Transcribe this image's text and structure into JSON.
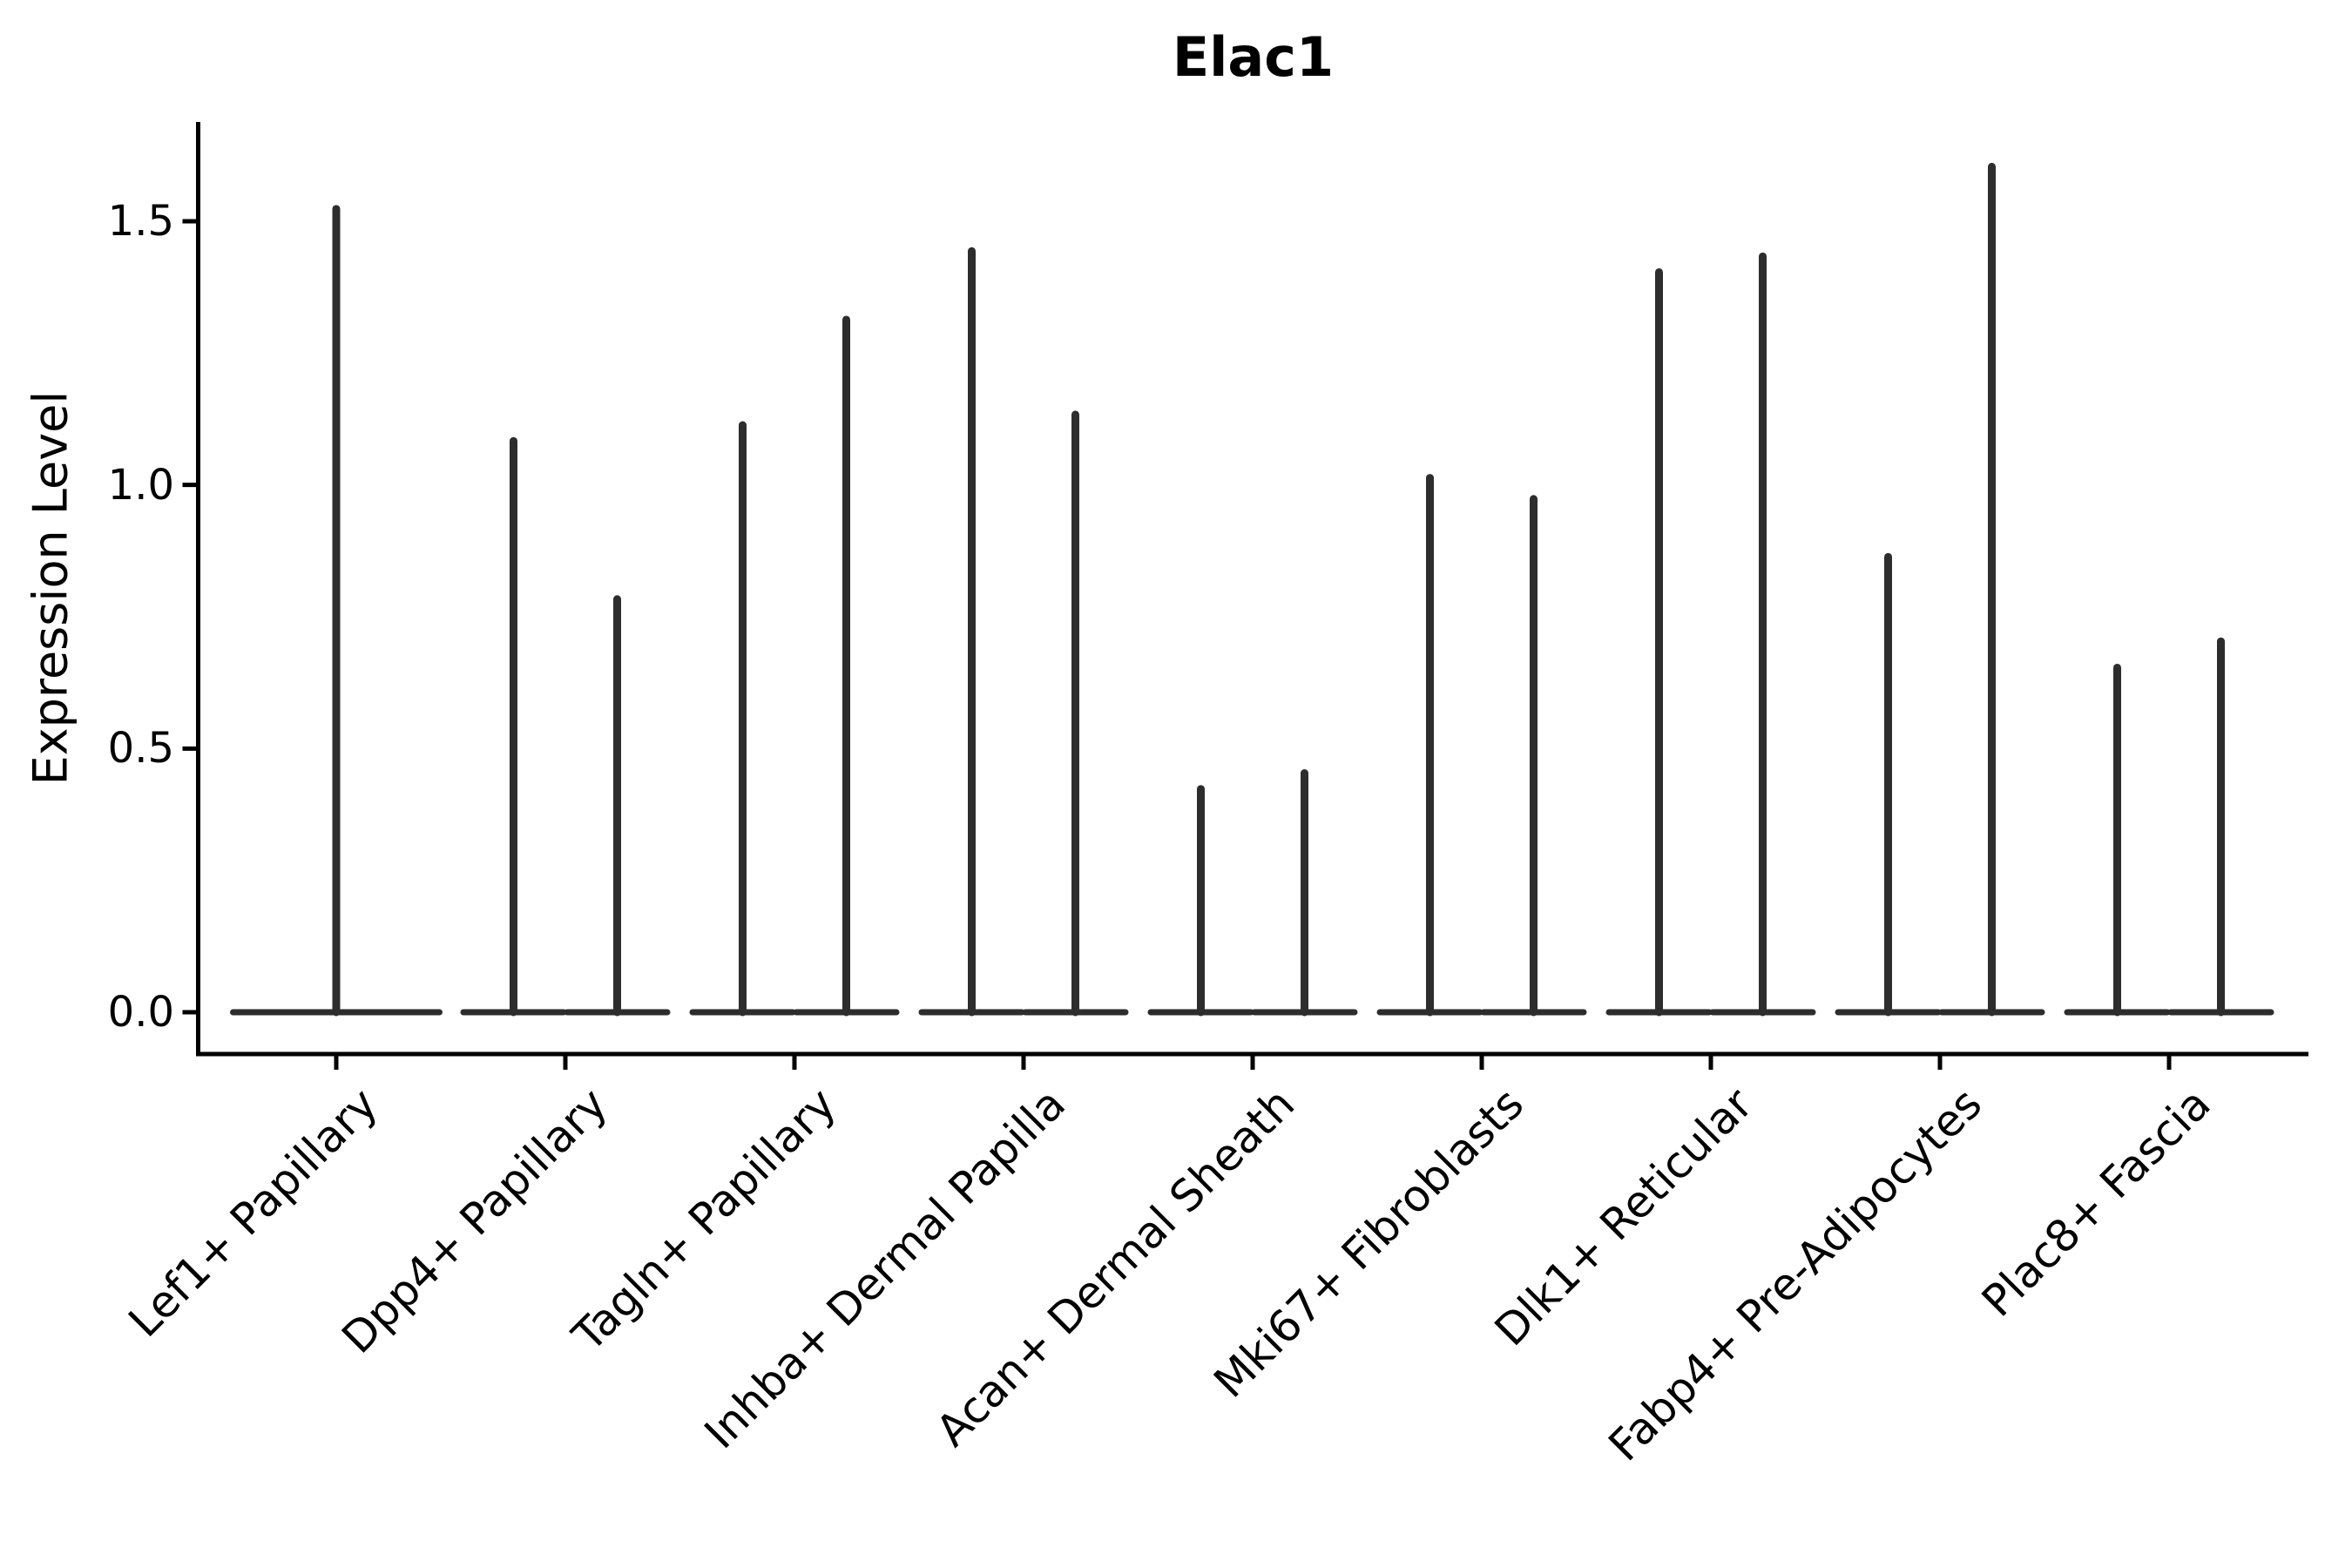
{
  "title": "Elac1",
  "ylabel": "Expression Level",
  "chart_data": {
    "type": "violin",
    "title": "Elac1",
    "xlabel": "",
    "ylabel": "Expression Level",
    "ylim": [
      -0.08,
      1.69
    ],
    "yticks": [
      0.0,
      0.5,
      1.0,
      1.5
    ],
    "ytick_labels": [
      "0.0",
      "0.5",
      "1.0",
      "1.5"
    ],
    "grid": false,
    "legend": "none",
    "x_tick_label_rotation_deg": 45,
    "violin_shape_note": "each violin is a flat wide base at expression 0 with a thin vertical spike up to the max expression value",
    "categories": [
      {
        "label": "Lef1+ Papillary",
        "violins": [
          {
            "position": "center",
            "max_expression": 1.53
          }
        ]
      },
      {
        "label": "Dpp4+ Papillary",
        "violins": [
          {
            "position": "left",
            "max_expression": 1.09
          },
          {
            "position": "right",
            "max_expression": 0.79
          }
        ]
      },
      {
        "label": "Tagln+ Papillary",
        "violins": [
          {
            "position": "left",
            "max_expression": 1.12
          },
          {
            "position": "right",
            "max_expression": 1.32
          }
        ]
      },
      {
        "label": "Inhba+ Dermal Papilla",
        "violins": [
          {
            "position": "left",
            "max_expression": 1.45
          },
          {
            "position": "right",
            "max_expression": 1.14
          }
        ]
      },
      {
        "label": "Acan+ Dermal Sheath",
        "violins": [
          {
            "position": "left",
            "max_expression": 0.43
          },
          {
            "position": "right",
            "max_expression": 0.46
          }
        ]
      },
      {
        "label": "Mki67+ Fibroblasts",
        "violins": [
          {
            "position": "left",
            "max_expression": 1.02
          },
          {
            "position": "right",
            "max_expression": 0.98
          }
        ]
      },
      {
        "label": "Dlk1+ Reticular",
        "violins": [
          {
            "position": "left",
            "max_expression": 1.41
          },
          {
            "position": "right",
            "max_expression": 1.44
          }
        ]
      },
      {
        "label": "Fabp4+ Pre-Adipocytes",
        "violins": [
          {
            "position": "left",
            "max_expression": 0.87
          },
          {
            "position": "right",
            "max_expression": 1.61
          }
        ]
      },
      {
        "label": "Plac8+ Fascia",
        "violins": [
          {
            "position": "left",
            "max_expression": 0.66
          },
          {
            "position": "right",
            "max_expression": 0.71
          }
        ]
      }
    ],
    "style": {
      "violin_color": "#2d2d2d",
      "axis_color": "#000000",
      "text_color": "#000000",
      "background": "#ffffff"
    }
  }
}
